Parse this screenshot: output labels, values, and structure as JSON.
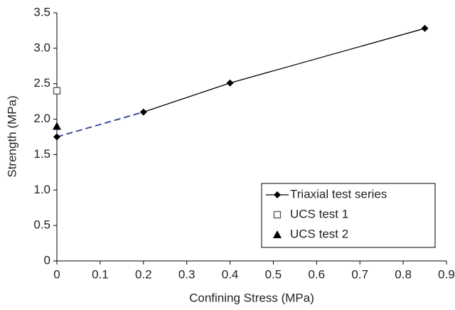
{
  "chart_data": {
    "type": "line",
    "x_label": "Confining Stress (MPa)",
    "y_label": "Strength (MPa)",
    "xlim": [
      0,
      0.9
    ],
    "xticks": [
      0,
      0.1,
      0.2,
      0.3,
      0.4,
      0.5,
      0.6,
      0.7,
      0.8,
      0.9
    ],
    "ylim": [
      0,
      3.5
    ],
    "yticks": [
      0,
      0.5,
      {
        "value": 1,
        "label": "1.0"
      },
      1.5,
      {
        "value": 2,
        "label": "2.0"
      },
      2.5,
      {
        "value": 3,
        "label": "3.0"
      },
      3.5
    ],
    "legend": "lower right",
    "series": [
      {
        "name": "Triaxial test series",
        "color": "#000000",
        "marker": "diamond",
        "line": true,
        "dash_first_segment": true,
        "dash_color": "#2e3f8f",
        "x": [
          0,
          0.2,
          0.4,
          0.85
        ],
        "values": [
          1.75,
          2.1,
          2.51,
          3.28
        ]
      },
      {
        "name": "UCS test 1",
        "color": "#555555",
        "marker": "open-square",
        "line": false,
        "x": [
          0
        ],
        "values": [
          2.4
        ]
      },
      {
        "name": "UCS test 2",
        "color": "#000000",
        "marker": "triangle",
        "line": false,
        "x": [
          0
        ],
        "values": [
          1.9
        ]
      }
    ]
  }
}
